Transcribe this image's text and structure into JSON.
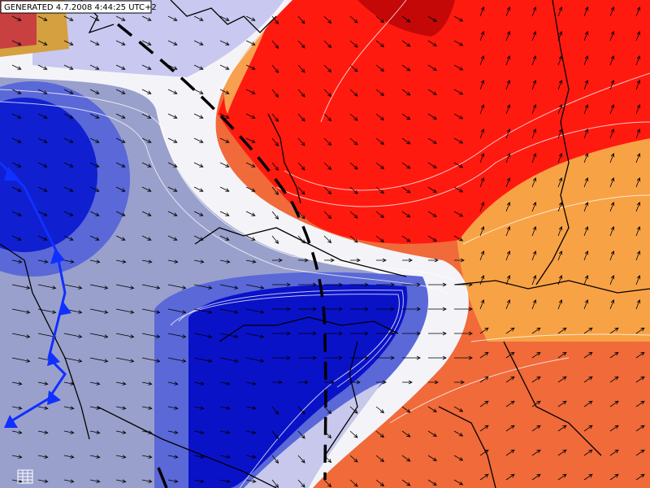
{
  "header": {
    "generated": "GENERATED 4.7.2008 4:44:25 UTC+2"
  }
}
